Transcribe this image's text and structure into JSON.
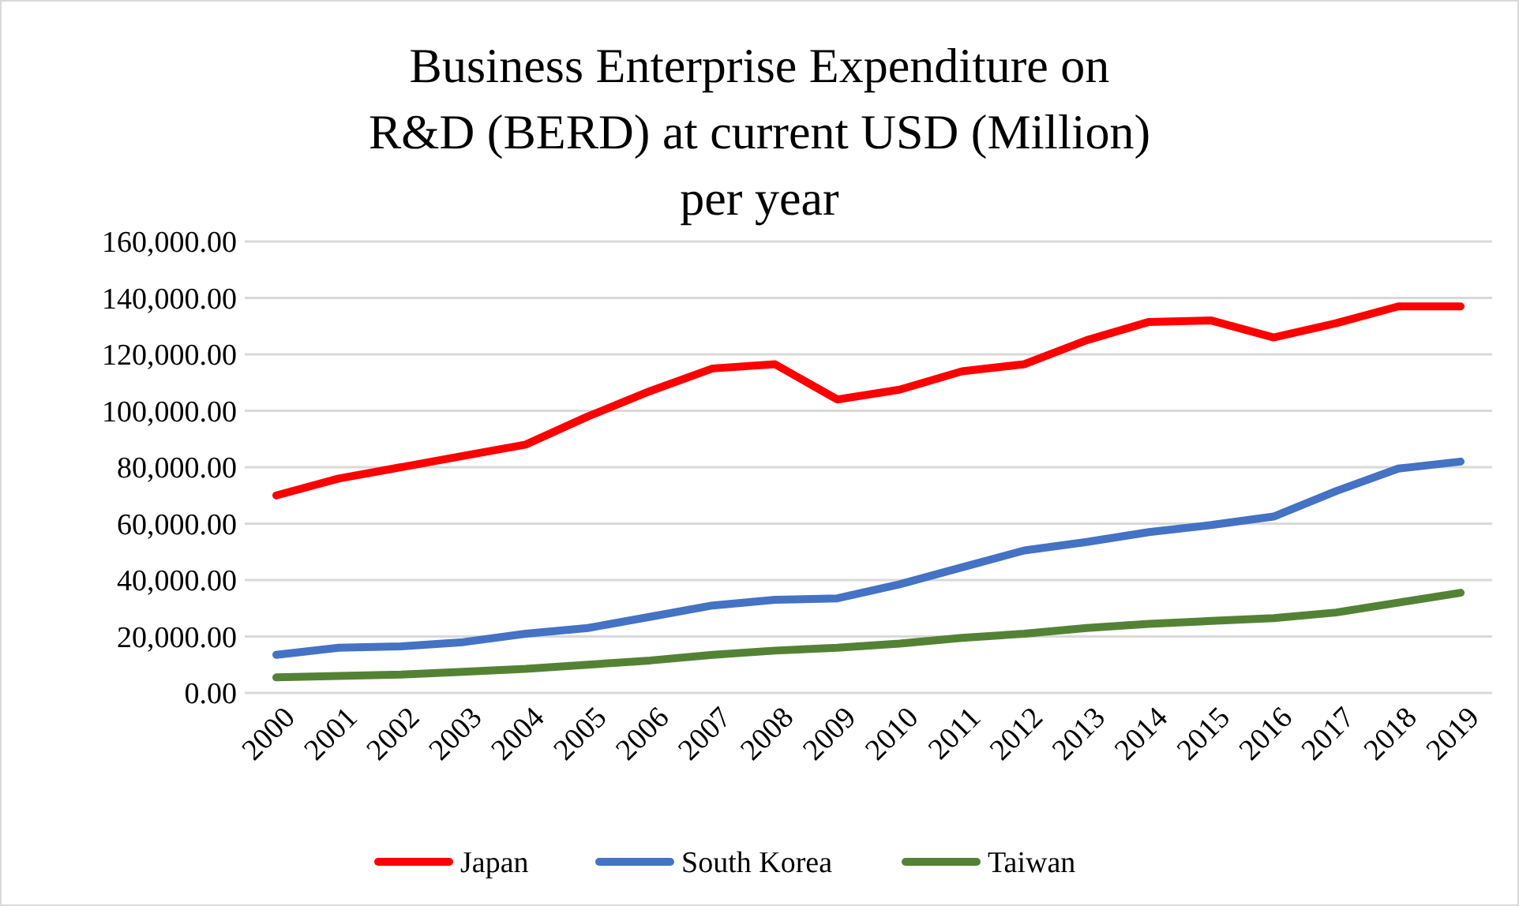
{
  "chart_data": {
    "type": "line",
    "title": "Business Enterprise Expenditure on R&D (BERD) at current USD (Million) per year",
    "categories": [
      "2000",
      "2001",
      "2002",
      "2003",
      "2004",
      "2005",
      "2006",
      "2007",
      "2008",
      "2009",
      "2010",
      "2011",
      "2012",
      "2013",
      "2014",
      "2015",
      "2016",
      "2017",
      "2018",
      "2019"
    ],
    "series": [
      {
        "name": "Japan",
        "color": "#ff0000",
        "values": [
          70000,
          76000,
          80000,
          84000,
          88000,
          98000,
          107000,
          115000,
          116500,
          104000,
          107500,
          114000,
          116500,
          125000,
          131500,
          132000,
          126000,
          131000,
          137000,
          137000
        ]
      },
      {
        "name": "South Korea",
        "color": "#4472c4",
        "values": [
          13500,
          16000,
          16500,
          18000,
          21000,
          23000,
          27000,
          31000,
          33000,
          33500,
          38500,
          44500,
          50500,
          53500,
          57000,
          59500,
          62500,
          71500,
          79500,
          82000
        ]
      },
      {
        "name": "Taiwan",
        "color": "#548235",
        "values": [
          5500,
          6000,
          6500,
          7500,
          8500,
          10000,
          11500,
          13500,
          15000,
          16000,
          17500,
          19500,
          21000,
          23000,
          24500,
          25500,
          26500,
          28500,
          32000,
          35500
        ]
      }
    ],
    "ylim": [
      0,
      160000
    ],
    "yticks": [
      {
        "value": 0,
        "label": "0.00"
      },
      {
        "value": 20000,
        "label": "20,000.00"
      },
      {
        "value": 40000,
        "label": "40,000.00"
      },
      {
        "value": 60000,
        "label": "60,000.00"
      },
      {
        "value": 80000,
        "label": "80,000.00"
      },
      {
        "value": 100000,
        "label": "100,000.00"
      },
      {
        "value": 120000,
        "label": "120,000.00"
      },
      {
        "value": 140000,
        "label": "140,000.00"
      },
      {
        "value": 160000,
        "label": "160,000.00"
      }
    ],
    "grid": "y",
    "legend": "bottom",
    "marker": "none",
    "line_style": "solid"
  }
}
